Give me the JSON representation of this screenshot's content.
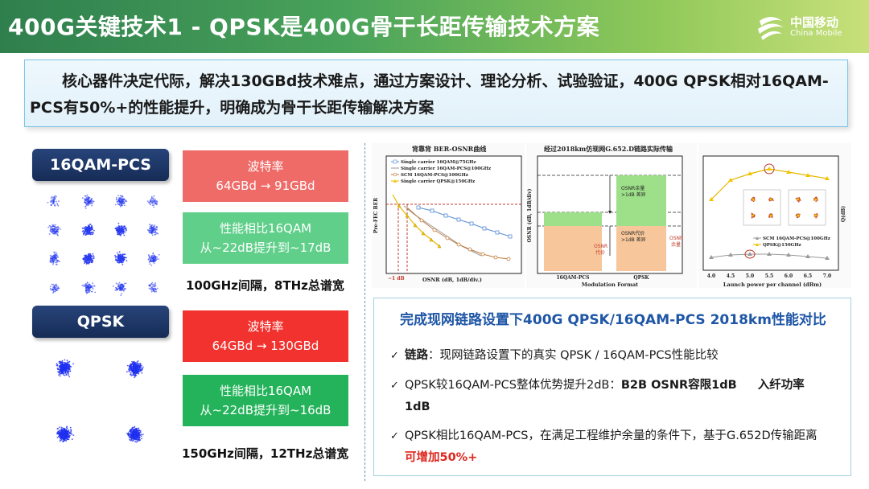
{
  "title": "400G关键技术1 - QPSK是400G骨干长距传输技术方案",
  "logo": {
    "cn": "中国移动",
    "en": "China Mobile"
  },
  "intro": "核心器件决定代际，解决130GBd技术难点，通过方案设计、理论分析、试验验证，400G QPSK相对16QAM-PCS有50%+的性能提升，明确成为骨干长距传输解决方案",
  "left": {
    "qam": {
      "label": "16QAM-PCS",
      "baud_title": "波特率",
      "baud_value": "64GBd → 91GBd",
      "perf_title": "性能相比16QAM",
      "perf_value": "从~22dB提升到~17dB",
      "bandwidth": "100GHz间隔，8THz总谱宽"
    },
    "qpsk": {
      "label": "QPSK",
      "baud_title": "波特率",
      "baud_value": "64GBd → 130GBd",
      "perf_title": "性能相比16QAM",
      "perf_value": "从~22dB提升到~16dB",
      "bandwidth": "150GHz间隔，12THz总谱宽"
    }
  },
  "plots": {
    "ber": {
      "title": "背靠背 BER-OSNR曲线",
      "legend": [
        "Single carrier 16QAM@75GHz",
        "Single carrier 16QAM-PCS@100GHz",
        "SCM 16QAM-PCS@100GHz",
        "Single carrier QPSK@150GHz"
      ],
      "ylabel": "Pre-FEC BER",
      "xlabel": "OSNR (dB, 1dB/div.)",
      "annotation": "~1 dB"
    },
    "bars": {
      "title": "经过2018km仿现网G.652.D链路实际传输",
      "ylabel": "OSNR (dB, 1dB/div)",
      "xlabel": "Modulation Format",
      "categories": [
        "16QAM-PCS",
        "QPSK"
      ],
      "margin_label_1": "OSNR余量",
      "margin_label_2": ">1dB 差异",
      "cost_label_1": "OSNR代价",
      "cost_label_2": ">1dB 差异",
      "osnr_left_1": "OSNR",
      "osnr_left_2": "代价",
      "osnr_right_1": "OSNR",
      "osnr_right_2": "余量"
    },
    "q": {
      "ylabel": "Q(dB)",
      "xlabel": "Launch power per channel (dBm)",
      "x_ticks": [
        "4.0",
        "4.5",
        "5.0",
        "5.5",
        "6.0",
        "6.5",
        "7.0"
      ],
      "legend": [
        "SCM 16QAM-PCS@100GHz",
        "QPSK@150GHz"
      ]
    }
  },
  "summary": {
    "title": "完成现网链路设置下400G QPSK/16QAM-PCS 2018km性能对比",
    "item1_bold": "链路",
    "item1_rest": "：现网链路设置下的真实 QPSK / 16QAM-PCS性能比较",
    "item2_rest": "QPSK较16QAM-PCS整体优势提升2dB：",
    "item2_bold1": "B2B OSNR容限1dB",
    "item2_bold2": "入纤功率",
    "item2_bold3": "1dB",
    "item3_rest": "QPSK相比16QAM-PCS，在满足工程维护余量的条件下，基于G.652D传输距离",
    "item3_red": "可增加50%+"
  },
  "colors": {
    "title_green": "#2f7f4e",
    "label_navy": "#1f3a6c",
    "constellation_blue": "#2233ee",
    "summary_blue": "#1f56a6",
    "highlight_red": "#e0261d"
  }
}
